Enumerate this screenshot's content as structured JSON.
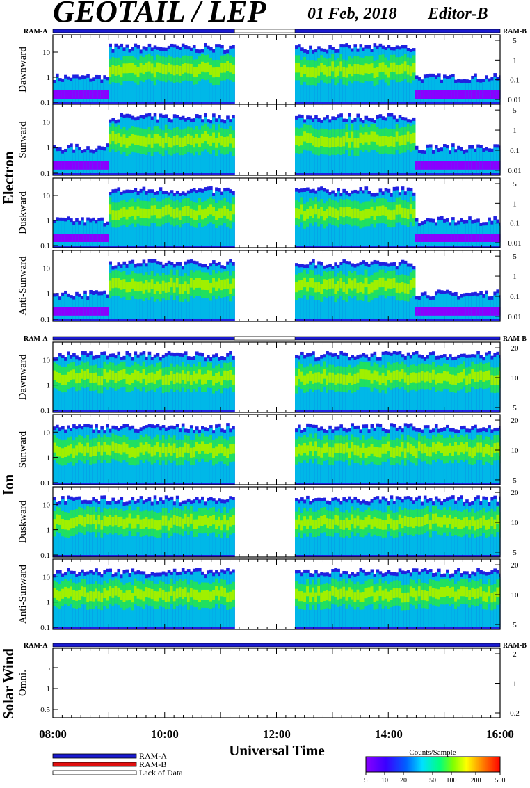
{
  "title": "GEOTAIL / LEP",
  "date": "01 Feb, 2018",
  "editor": "Editor-B",
  "ram_labels": {
    "a": "RAM-A",
    "b": "RAM-B"
  },
  "groups": {
    "electron": "Electron",
    "ion": "Ion",
    "solar_wind": "Solar Wind"
  },
  "x_axis": {
    "label": "Universal Time",
    "ticks": [
      "08:00",
      "10:00",
      "12:00",
      "14:00",
      "16:00"
    ]
  },
  "legend": {
    "ram_a": "RAM-A",
    "ram_b": "RAM-B",
    "lack": "Lack of Data"
  },
  "colorbar": {
    "title": "Counts/Sample",
    "ticks": [
      "5",
      "10",
      "20",
      "50",
      "100",
      "200",
      "500"
    ]
  },
  "colors": {
    "ram_a": "#1a1ad0",
    "ram_b": "#e01010",
    "lack": "#ffffff"
  },
  "chart_data": [
    {
      "type": "heatmap",
      "group": "Electron",
      "x_range_hours": [
        8,
        16
      ],
      "data_gap_hours": [
        11.25,
        12.33
      ],
      "panels": [
        {
          "ylabel": "Dawnward",
          "left_ticks": [
            "10",
            "1",
            "0.1"
          ],
          "right_ticks": [
            "5",
            "1",
            "0.1",
            "0.01"
          ]
        },
        {
          "ylabel": "Sunward",
          "left_ticks": [
            "10",
            "1",
            "0.1"
          ],
          "right_ticks": [
            "5",
            "1",
            "0.1",
            "0.01"
          ]
        },
        {
          "ylabel": "Duskward",
          "left_ticks": [
            "10",
            "1",
            "0.1"
          ],
          "right_ticks": [
            "5",
            "1",
            "0.1",
            "0.01"
          ]
        },
        {
          "ylabel": "Anti-Sunward",
          "left_ticks": [
            "10",
            "1",
            "0.1"
          ],
          "right_ticks": [
            "5",
            "1",
            "0.1",
            "0.01"
          ]
        }
      ]
    },
    {
      "type": "heatmap",
      "group": "Ion",
      "x_range_hours": [
        8,
        16
      ],
      "data_gap_hours": [
        11.25,
        12.33
      ],
      "panels": [
        {
          "ylabel": "Dawnward",
          "left_ticks": [
            "10",
            "1",
            "0.1"
          ],
          "right_ticks": [
            "20",
            "10",
            "5"
          ]
        },
        {
          "ylabel": "Sunward",
          "left_ticks": [
            "10",
            "1",
            "0.1"
          ],
          "right_ticks": [
            "20",
            "10",
            "5"
          ]
        },
        {
          "ylabel": "Duskward",
          "left_ticks": [
            "10",
            "1",
            "0.1"
          ],
          "right_ticks": [
            "20",
            "10",
            "5"
          ]
        },
        {
          "ylabel": "Anti-Sunward",
          "left_ticks": [
            "10",
            "1",
            "0.1"
          ],
          "right_ticks": [
            "20",
            "10",
            "5"
          ]
        }
      ]
    },
    {
      "type": "heatmap",
      "group": "Solar Wind",
      "x_range_hours": [
        8,
        16
      ],
      "panels": [
        {
          "ylabel": "Omni.",
          "left_ticks": [
            "5",
            "1",
            "0.5"
          ],
          "right_ticks": [
            "2",
            "1",
            "0.2"
          ]
        }
      ]
    }
  ]
}
